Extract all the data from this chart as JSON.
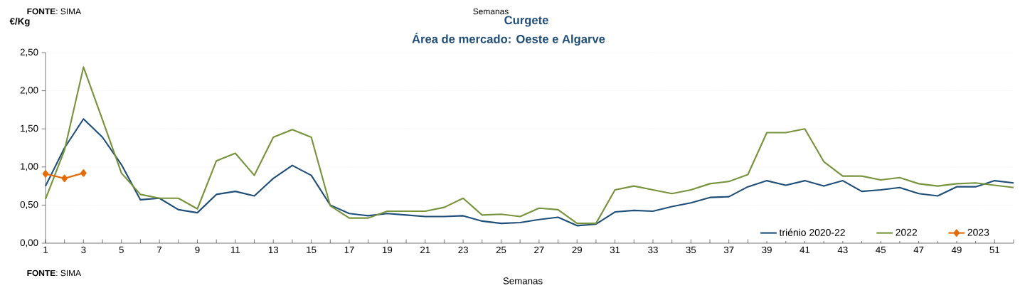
{
  "chart_data": {
    "type": "line",
    "title": "Curgete",
    "subtitle": "Área de mercado: Oeste e Algarve",
    "xlabel": "Semanas",
    "ylabel": "€/Kg",
    "annotations": [
      "**FONTE**: SIMA",
      "Semanas",
      "**FONTE**: SIMA"
    ],
    "x": [
      1,
      2,
      3,
      4,
      5,
      6,
      7,
      8,
      9,
      10,
      11,
      12,
      13,
      14,
      15,
      16,
      17,
      18,
      19,
      20,
      21,
      22,
      23,
      24,
      25,
      26,
      27,
      28,
      29,
      30,
      31,
      32,
      33,
      34,
      35,
      36,
      37,
      38,
      39,
      40,
      41,
      42,
      43,
      44,
      45,
      46,
      47,
      48,
      49,
      50,
      51,
      52
    ],
    "series": [
      {
        "name": "triénio 2020-22",
        "color": "#1f4e79",
        "marker": "none",
        "values": [
          0.75,
          1.25,
          1.63,
          1.39,
          1.03,
          0.57,
          0.59,
          0.44,
          0.4,
          0.64,
          0.68,
          0.62,
          0.85,
          1.02,
          0.89,
          0.5,
          0.39,
          0.36,
          0.39,
          0.37,
          0.35,
          0.35,
          0.36,
          0.29,
          0.26,
          0.27,
          0.31,
          0.34,
          0.23,
          0.25,
          0.41,
          0.43,
          0.42,
          0.48,
          0.53,
          0.6,
          0.61,
          0.74,
          0.82,
          0.76,
          0.82,
          0.75,
          0.82,
          0.68,
          0.7,
          0.73,
          0.65,
          0.62,
          0.74,
          0.74,
          0.82,
          0.79
        ]
      },
      {
        "name": "2022",
        "color": "#77933c",
        "marker": "none",
        "values": [
          0.58,
          1.22,
          2.31,
          1.62,
          0.92,
          0.64,
          0.59,
          0.59,
          0.45,
          1.08,
          1.18,
          0.89,
          1.39,
          1.49,
          1.39,
          0.49,
          0.33,
          0.33,
          0.42,
          0.42,
          0.42,
          0.47,
          0.59,
          0.37,
          0.38,
          0.35,
          0.46,
          0.44,
          0.26,
          0.26,
          0.7,
          0.75,
          0.7,
          0.65,
          0.7,
          0.78,
          0.81,
          0.9,
          1.45,
          1.45,
          1.5,
          1.07,
          0.88,
          0.88,
          0.83,
          0.86,
          0.78,
          0.75,
          0.78,
          0.79,
          0.76,
          0.73
        ]
      },
      {
        "name": "2023",
        "color": "#e36c09",
        "marker": "diamond",
        "x": [
          1,
          2,
          3
        ],
        "values": [
          0.91,
          0.85,
          0.92
        ]
      }
    ],
    "xlim": [
      1,
      52
    ],
    "xticks": [
      1,
      {
        "value": 2,
        "label": null
      },
      3,
      {
        "value": 4,
        "label": null
      },
      5,
      {
        "value": 6,
        "label": null
      },
      7,
      {
        "value": 8,
        "label": null
      },
      9,
      {
        "value": 10,
        "label": null
      },
      11,
      {
        "value": 12,
        "label": null
      },
      13,
      {
        "value": 14,
        "label": null
      },
      15,
      {
        "value": 16,
        "label": null
      },
      17,
      {
        "value": 18,
        "label": null
      },
      19,
      {
        "value": 20,
        "label": null
      },
      21,
      {
        "value": 22,
        "label": null
      },
      23,
      {
        "value": 24,
        "label": null
      },
      25,
      {
        "value": 26,
        "label": null
      },
      27,
      {
        "value": 28,
        "label": null
      },
      29,
      {
        "value": 30,
        "label": null
      },
      31,
      {
        "value": 32,
        "label": null
      },
      33,
      {
        "value": 34,
        "label": null
      },
      35,
      {
        "value": 36,
        "label": null
      },
      37,
      {
        "value": 38,
        "label": null
      },
      39,
      {
        "value": 40,
        "label": null
      },
      41,
      {
        "value": 42,
        "label": null
      },
      43,
      {
        "value": 44,
        "label": null
      },
      45,
      {
        "value": 46,
        "label": null
      },
      47,
      {
        "value": 48,
        "label": null
      },
      49,
      {
        "value": 50,
        "label": null
      },
      51,
      {
        "value": 52,
        "label": null
      }
    ],
    "ylim": [
      0,
      2.5
    ],
    "yticks": [
      {
        "value": 0,
        "label": "0,00"
      },
      {
        "value": 0.5,
        "label": "0,50"
      },
      {
        "value": 1,
        "label": "1,00"
      },
      {
        "value": 1.5,
        "label": "1,50"
      },
      {
        "value": 2,
        "label": "2,00"
      },
      {
        "value": 2.5,
        "label": "2,50"
      }
    ],
    "grid": "y",
    "legend": "bottom right",
    "line_style": "solid"
  }
}
